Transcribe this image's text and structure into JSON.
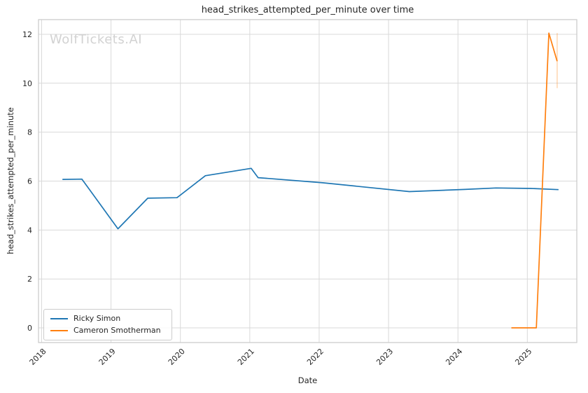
{
  "watermark": "WolfTickets.AI",
  "chart_data": {
    "type": "line",
    "title": "head_strikes_attempted_per_minute over time",
    "xlabel": "Date",
    "ylabel": "head_strikes_attempted_per_minute",
    "xlim": [
      2017.955,
      2025.713
    ],
    "ylim": [
      -0.6,
      12.6
    ],
    "x_ticks": [
      2018,
      2019,
      2020,
      2021,
      2022,
      2023,
      2024,
      2025
    ],
    "y_ticks": [
      0,
      2,
      4,
      6,
      8,
      10,
      12
    ],
    "grid": true,
    "legend_position": "lower-left",
    "colors": {
      "grid": "#d9d9d9",
      "spine": "#c9c9c9",
      "tick_text": "#262626"
    },
    "series": [
      {
        "name": "Ricky Simon",
        "color": "#1f77b4",
        "points": [
          [
            2018.3,
            6.07
          ],
          [
            2018.58,
            6.08
          ],
          [
            2019.1,
            4.05
          ],
          [
            2019.53,
            5.3
          ],
          [
            2019.95,
            5.32
          ],
          [
            2020.36,
            6.22
          ],
          [
            2021.02,
            6.52
          ],
          [
            2021.12,
            6.14
          ],
          [
            2022.05,
            5.93
          ],
          [
            2023.3,
            5.57
          ],
          [
            2024.1,
            5.66
          ],
          [
            2024.55,
            5.72
          ],
          [
            2025.05,
            5.7
          ],
          [
            2025.45,
            5.65
          ]
        ]
      },
      {
        "name": "Cameron Smotherman",
        "color": "#ff7f0e",
        "points": [
          [
            2024.77,
            0.0
          ],
          [
            2025.13,
            0.0
          ],
          [
            2025.31,
            12.05
          ],
          [
            2025.43,
            10.9
          ]
        ],
        "error_bar": {
          "x": 2025.43,
          "y_low": 9.8,
          "y_high": 12.05
        }
      }
    ]
  }
}
